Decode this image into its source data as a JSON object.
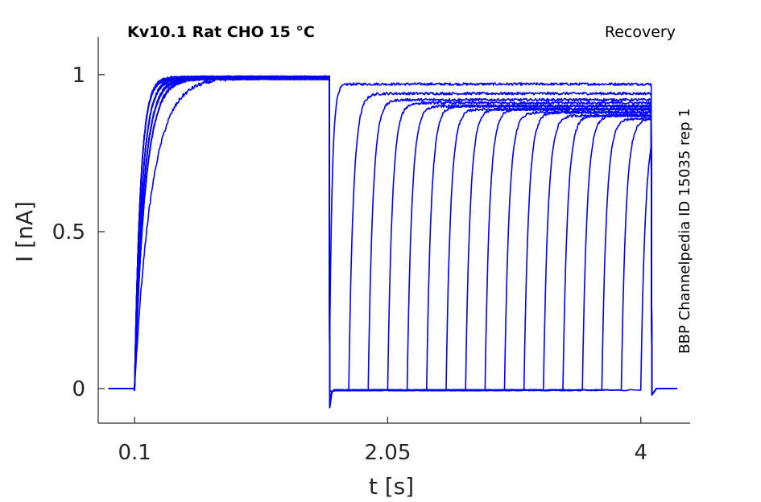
{
  "chart_data": {
    "type": "line",
    "title": "Kv10.1  Rat  CHO  15 °C",
    "protocol": "Recovery",
    "source": "BBP Channelpedia ID 15035 rep 1",
    "xlabel": "t [s]",
    "ylabel": "I [nA]",
    "x_ticks": [
      "0.1",
      "2.05",
      "4"
    ],
    "y_ticks": [
      "0",
      "0.5",
      "1"
    ],
    "xlim": [
      -0.18,
      4.38
    ],
    "ylim": [
      -0.11,
      1.12
    ],
    "line_color": "#0000ff",
    "baseline_window": [
      -0.1,
      0.1
    ],
    "conditioning_pulse": [
      0.1,
      1.6
    ],
    "conditioning_peak": 0.99,
    "recovery_pulse_end": 4.08,
    "recovery_onsets": [
      1.6,
      1.75,
      1.9,
      2.05,
      2.2,
      2.35,
      2.5,
      2.65,
      2.8,
      2.95,
      3.1,
      3.25,
      3.4,
      3.55,
      3.7,
      3.85,
      4.0
    ],
    "recovery_peaks": [
      0.97,
      0.94,
      0.92,
      0.91,
      0.9,
      0.9,
      0.89,
      0.89,
      0.89,
      0.88,
      0.88,
      0.87,
      0.87,
      0.87,
      0.86,
      0.86,
      0.86
    ]
  }
}
